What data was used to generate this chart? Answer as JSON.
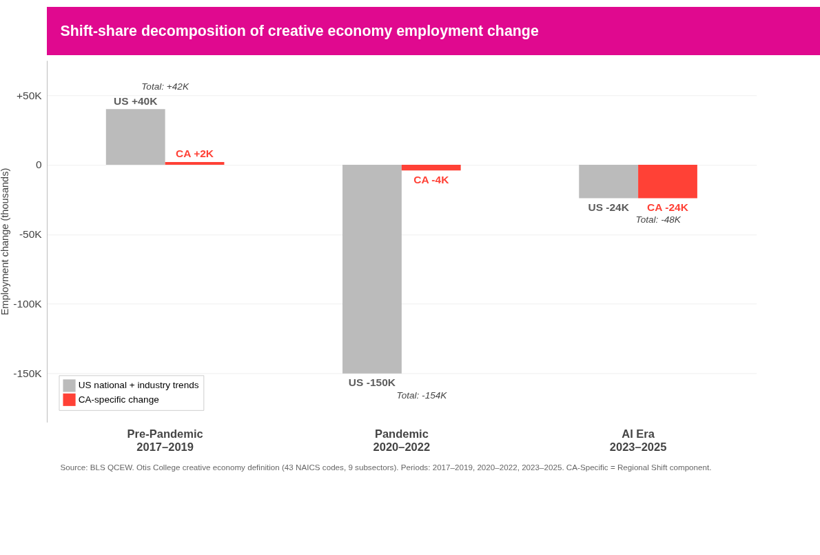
{
  "chart_data": {
    "type": "bar",
    "title": "Shift-share decomposition of creative economy employment change",
    "ylabel": "Employment change (thousands)",
    "categories": [
      "Pre-Pandemic\n2017–2019",
      "Pandemic\n2020–2022",
      "AI Era\n2023–2025"
    ],
    "series": [
      {
        "name": "US national + industry trends",
        "color": "#bbbbbb",
        "values": [
          40,
          -150,
          -24
        ],
        "value_labels": [
          "US +40K",
          "US -150K",
          "US -24K"
        ]
      },
      {
        "name": "CA-specific change",
        "color": "#ff4136",
        "values": [
          2,
          -4,
          -24
        ],
        "value_labels": [
          "CA +2K",
          "CA -4K",
          "CA -24K"
        ]
      }
    ],
    "totals": [
      "Total: +42K",
      "Total: -154K",
      "Total: -48K"
    ],
    "ylim": [
      -185,
      75
    ],
    "yticks": [
      {
        "value": 50,
        "label": "+50K"
      },
      {
        "value": 0,
        "label": "0"
      },
      {
        "value": -50,
        "label": "-50K"
      },
      {
        "value": -100,
        "label": "-100K"
      },
      {
        "value": -150,
        "label": "-150K"
      }
    ],
    "grid": "y",
    "legend": "bottom left",
    "annotations": [
      "Source: BLS QCEW. Otis College creative economy definition (43 NAICS codes, 9 subsectors). Periods: 2017–2019, 2020–2022, 2023–2025. CA-Specific = Regional Shift component."
    ]
  }
}
